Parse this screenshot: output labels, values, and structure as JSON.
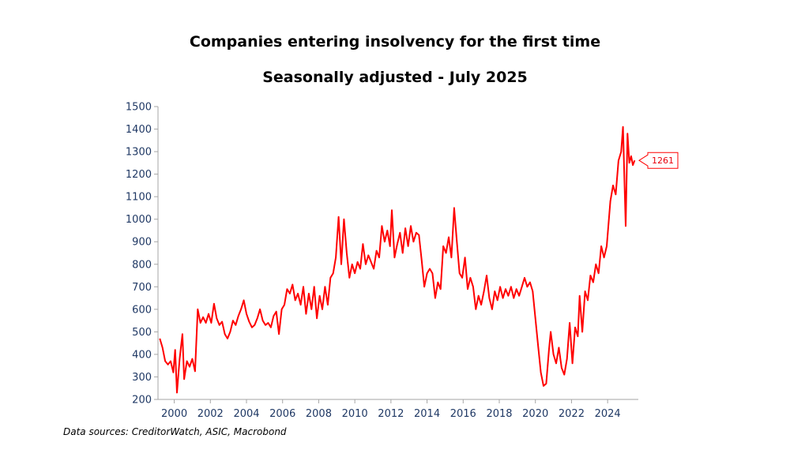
{
  "chart_data": {
    "type": "line",
    "title": "Companies entering insolvency for the first time",
    "subtitle": "Seasonally adjusted - July 2025",
    "xlabel": "",
    "ylabel": "",
    "ylim": [
      200,
      1500
    ],
    "yticks": [
      1500,
      1400,
      1300,
      1200,
      1100,
      1000,
      900,
      800,
      700,
      600,
      500,
      400,
      300,
      200
    ],
    "xlim": [
      1999.1,
      2025.7
    ],
    "xticks": [
      2000,
      2002,
      2004,
      2006,
      2008,
      2010,
      2012,
      2014,
      2016,
      2018,
      2020,
      2022,
      2024
    ],
    "grid": false,
    "line_color": "#ff0000",
    "series": [
      {
        "name": "",
        "last_value_label": "1261",
        "points": [
          [
            1999.2,
            470
          ],
          [
            1999.35,
            430
          ],
          [
            1999.5,
            370
          ],
          [
            1999.65,
            355
          ],
          [
            1999.8,
            370
          ],
          [
            1999.95,
            320
          ],
          [
            2000.05,
            420
          ],
          [
            2000.15,
            230
          ],
          [
            2000.3,
            380
          ],
          [
            2000.45,
            490
          ],
          [
            2000.55,
            290
          ],
          [
            2000.7,
            370
          ],
          [
            2000.85,
            345
          ],
          [
            2001.0,
            380
          ],
          [
            2001.15,
            325
          ],
          [
            2001.3,
            600
          ],
          [
            2001.45,
            540
          ],
          [
            2001.6,
            565
          ],
          [
            2001.75,
            540
          ],
          [
            2001.9,
            580
          ],
          [
            2002.05,
            540
          ],
          [
            2002.2,
            625
          ],
          [
            2002.35,
            560
          ],
          [
            2002.5,
            530
          ],
          [
            2002.65,
            545
          ],
          [
            2002.8,
            490
          ],
          [
            2002.95,
            470
          ],
          [
            2003.1,
            500
          ],
          [
            2003.25,
            550
          ],
          [
            2003.4,
            530
          ],
          [
            2003.55,
            570
          ],
          [
            2003.7,
            600
          ],
          [
            2003.85,
            640
          ],
          [
            2004.0,
            580
          ],
          [
            2004.15,
            545
          ],
          [
            2004.3,
            520
          ],
          [
            2004.45,
            530
          ],
          [
            2004.6,
            560
          ],
          [
            2004.75,
            600
          ],
          [
            2004.9,
            550
          ],
          [
            2005.05,
            530
          ],
          [
            2005.2,
            540
          ],
          [
            2005.35,
            520
          ],
          [
            2005.5,
            570
          ],
          [
            2005.65,
            590
          ],
          [
            2005.8,
            490
          ],
          [
            2005.95,
            600
          ],
          [
            2006.1,
            620
          ],
          [
            2006.25,
            690
          ],
          [
            2006.4,
            670
          ],
          [
            2006.55,
            710
          ],
          [
            2006.7,
            640
          ],
          [
            2006.85,
            670
          ],
          [
            2007.0,
            620
          ],
          [
            2007.15,
            700
          ],
          [
            2007.3,
            580
          ],
          [
            2007.45,
            670
          ],
          [
            2007.6,
            600
          ],
          [
            2007.75,
            700
          ],
          [
            2007.9,
            560
          ],
          [
            2008.05,
            660
          ],
          [
            2008.2,
            600
          ],
          [
            2008.35,
            700
          ],
          [
            2008.5,
            620
          ],
          [
            2008.65,
            740
          ],
          [
            2008.8,
            760
          ],
          [
            2008.95,
            830
          ],
          [
            2009.1,
            1010
          ],
          [
            2009.25,
            800
          ],
          [
            2009.4,
            1000
          ],
          [
            2009.55,
            850
          ],
          [
            2009.7,
            740
          ],
          [
            2009.85,
            800
          ],
          [
            2010.0,
            760
          ],
          [
            2010.15,
            810
          ],
          [
            2010.3,
            780
          ],
          [
            2010.45,
            890
          ],
          [
            2010.6,
            800
          ],
          [
            2010.75,
            840
          ],
          [
            2010.9,
            810
          ],
          [
            2011.05,
            780
          ],
          [
            2011.2,
            860
          ],
          [
            2011.35,
            830
          ],
          [
            2011.5,
            970
          ],
          [
            2011.65,
            900
          ],
          [
            2011.8,
            950
          ],
          [
            2011.95,
            880
          ],
          [
            2012.05,
            1040
          ],
          [
            2012.2,
            830
          ],
          [
            2012.35,
            890
          ],
          [
            2012.5,
            940
          ],
          [
            2012.65,
            850
          ],
          [
            2012.8,
            960
          ],
          [
            2012.95,
            880
          ],
          [
            2013.1,
            970
          ],
          [
            2013.25,
            900
          ],
          [
            2013.4,
            940
          ],
          [
            2013.55,
            930
          ],
          [
            2013.7,
            820
          ],
          [
            2013.85,
            700
          ],
          [
            2014.0,
            760
          ],
          [
            2014.15,
            780
          ],
          [
            2014.3,
            760
          ],
          [
            2014.45,
            650
          ],
          [
            2014.6,
            720
          ],
          [
            2014.75,
            690
          ],
          [
            2014.9,
            880
          ],
          [
            2015.05,
            850
          ],
          [
            2015.2,
            920
          ],
          [
            2015.35,
            830
          ],
          [
            2015.5,
            1050
          ],
          [
            2015.65,
            900
          ],
          [
            2015.8,
            760
          ],
          [
            2015.95,
            740
          ],
          [
            2016.1,
            830
          ],
          [
            2016.25,
            690
          ],
          [
            2016.4,
            740
          ],
          [
            2016.55,
            700
          ],
          [
            2016.7,
            600
          ],
          [
            2016.85,
            660
          ],
          [
            2017.0,
            620
          ],
          [
            2017.15,
            680
          ],
          [
            2017.3,
            750
          ],
          [
            2017.45,
            650
          ],
          [
            2017.6,
            600
          ],
          [
            2017.75,
            680
          ],
          [
            2017.9,
            640
          ],
          [
            2018.05,
            700
          ],
          [
            2018.2,
            650
          ],
          [
            2018.35,
            690
          ],
          [
            2018.5,
            660
          ],
          [
            2018.65,
            700
          ],
          [
            2018.8,
            650
          ],
          [
            2018.95,
            690
          ],
          [
            2019.1,
            660
          ],
          [
            2019.25,
            700
          ],
          [
            2019.4,
            740
          ],
          [
            2019.55,
            700
          ],
          [
            2019.7,
            720
          ],
          [
            2019.85,
            680
          ],
          [
            2020.0,
            560
          ],
          [
            2020.15,
            440
          ],
          [
            2020.3,
            320
          ],
          [
            2020.45,
            260
          ],
          [
            2020.6,
            270
          ],
          [
            2020.75,
            420
          ],
          [
            2020.85,
            500
          ],
          [
            2021.0,
            400
          ],
          [
            2021.15,
            360
          ],
          [
            2021.3,
            430
          ],
          [
            2021.45,
            340
          ],
          [
            2021.6,
            310
          ],
          [
            2021.75,
            380
          ],
          [
            2021.9,
            540
          ],
          [
            2022.05,
            360
          ],
          [
            2022.2,
            520
          ],
          [
            2022.35,
            480
          ],
          [
            2022.45,
            660
          ],
          [
            2022.6,
            500
          ],
          [
            2022.75,
            680
          ],
          [
            2022.9,
            640
          ],
          [
            2023.05,
            750
          ],
          [
            2023.2,
            720
          ],
          [
            2023.35,
            800
          ],
          [
            2023.5,
            760
          ],
          [
            2023.65,
            880
          ],
          [
            2023.8,
            830
          ],
          [
            2023.95,
            880
          ],
          [
            2024.05,
            980
          ],
          [
            2024.15,
            1080
          ],
          [
            2024.3,
            1150
          ],
          [
            2024.45,
            1110
          ],
          [
            2024.6,
            1260
          ],
          [
            2024.75,
            1300
          ],
          [
            2024.85,
            1410
          ],
          [
            2025.0,
            970
          ],
          [
            2025.1,
            1380
          ],
          [
            2025.2,
            1250
          ],
          [
            2025.3,
            1280
          ],
          [
            2025.4,
            1240
          ],
          [
            2025.5,
            1261
          ]
        ]
      }
    ]
  },
  "source": "Data sources: CreditorWatch, ASIC, Macrobond"
}
